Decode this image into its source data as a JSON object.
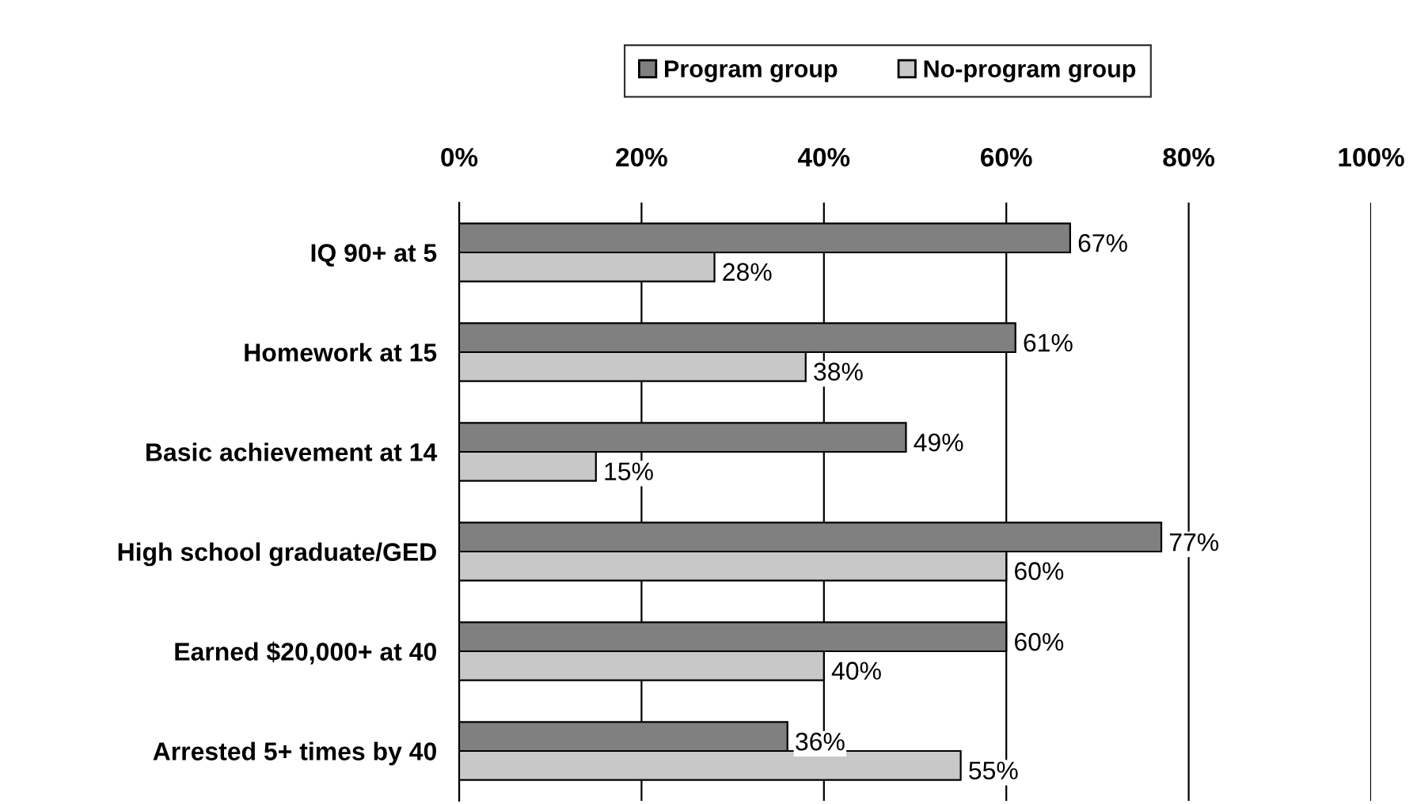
{
  "chart_data": {
    "type": "bar",
    "orientation": "horizontal",
    "categories": [
      "IQ 90+ at 5",
      "Homework at 15",
      "Basic achievement at 14",
      "High school graduate/GED",
      "Earned $20,000+ at 40",
      "Arrested 5+ times by 40"
    ],
    "series": [
      {
        "name": "Program group",
        "color": "#808080",
        "values": [
          67,
          61,
          49,
          77,
          60,
          36
        ],
        "value_labels": [
          "67%",
          "61%",
          "49%",
          "77%",
          "60%",
          "36%"
        ]
      },
      {
        "name": "No-program group",
        "color": "#c8c8c8",
        "values": [
          28,
          38,
          15,
          60,
          40,
          55
        ],
        "value_labels": [
          "28%",
          "38%",
          "15%",
          "60%",
          "40%",
          "55%"
        ]
      }
    ],
    "xlim": [
      0,
      100
    ],
    "xticks": [
      {
        "value": 0,
        "label": "0%"
      },
      {
        "value": 20,
        "label": "20%"
      },
      {
        "value": 40,
        "label": "40%"
      },
      {
        "value": 60,
        "label": "60%"
      },
      {
        "value": 80,
        "label": "80%"
      },
      {
        "value": 100,
        "label": "100%"
      }
    ],
    "grid": "x",
    "legend": "top"
  }
}
